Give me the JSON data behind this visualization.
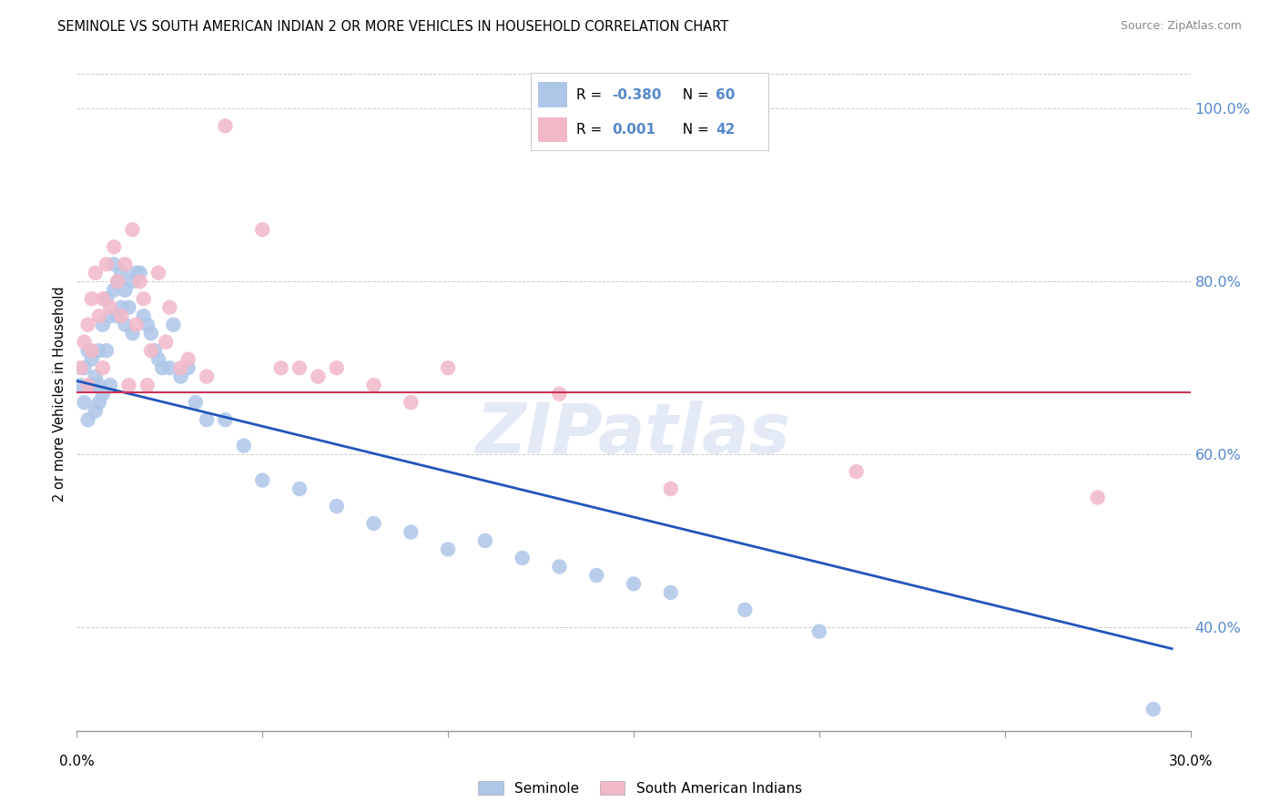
{
  "title": "SEMINOLE VS SOUTH AMERICAN INDIAN 2 OR MORE VEHICLES IN HOUSEHOLD CORRELATION CHART",
  "source": "Source: ZipAtlas.com",
  "ylabel": "2 or more Vehicles in Household",
  "xlim": [
    0.0,
    0.3
  ],
  "ylim": [
    0.28,
    1.06
  ],
  "blue_color": "#aec6e8",
  "pink_color": "#f2b8c8",
  "line_blue_color": "#2255bb",
  "line_pink_color": "#cc3355",
  "text_blue": "#5588cc",
  "grid_color": "#cccccc",
  "yticks": [
    0.4,
    0.6,
    0.8,
    1.0
  ],
  "ytick_labels": [
    "40.0%",
    "60.0%",
    "80.0%",
    "100.0%"
  ],
  "xtick_left_label": "0.0%",
  "xtick_right_label": "30.0%",
  "blue_line_x0": 0.0,
  "blue_line_y0": 0.685,
  "blue_line_x1": 0.295,
  "blue_line_y1": 0.375,
  "pink_line_y": 0.672,
  "seminole_x": [
    0.001,
    0.002,
    0.002,
    0.003,
    0.003,
    0.004,
    0.004,
    0.005,
    0.005,
    0.006,
    0.006,
    0.006,
    0.007,
    0.007,
    0.008,
    0.008,
    0.009,
    0.009,
    0.01,
    0.01,
    0.011,
    0.011,
    0.012,
    0.012,
    0.013,
    0.013,
    0.014,
    0.015,
    0.015,
    0.016,
    0.017,
    0.018,
    0.019,
    0.02,
    0.021,
    0.022,
    0.023,
    0.025,
    0.026,
    0.028,
    0.03,
    0.032,
    0.035,
    0.04,
    0.045,
    0.05,
    0.06,
    0.07,
    0.08,
    0.09,
    0.1,
    0.11,
    0.12,
    0.13,
    0.14,
    0.15,
    0.16,
    0.18,
    0.2,
    0.29
  ],
  "seminole_y": [
    0.68,
    0.66,
    0.7,
    0.64,
    0.72,
    0.68,
    0.71,
    0.65,
    0.69,
    0.72,
    0.68,
    0.66,
    0.75,
    0.67,
    0.78,
    0.72,
    0.76,
    0.68,
    0.82,
    0.79,
    0.8,
    0.76,
    0.81,
    0.77,
    0.79,
    0.75,
    0.77,
    0.8,
    0.74,
    0.81,
    0.81,
    0.76,
    0.75,
    0.74,
    0.72,
    0.71,
    0.7,
    0.7,
    0.75,
    0.69,
    0.7,
    0.66,
    0.64,
    0.64,
    0.61,
    0.57,
    0.56,
    0.54,
    0.52,
    0.51,
    0.49,
    0.5,
    0.48,
    0.47,
    0.46,
    0.45,
    0.44,
    0.42,
    0.395,
    0.305
  ],
  "sa_x": [
    0.001,
    0.002,
    0.003,
    0.003,
    0.004,
    0.004,
    0.005,
    0.006,
    0.007,
    0.007,
    0.008,
    0.009,
    0.01,
    0.011,
    0.012,
    0.013,
    0.014,
    0.015,
    0.016,
    0.017,
    0.018,
    0.019,
    0.02,
    0.022,
    0.024,
    0.025,
    0.028,
    0.03,
    0.035,
    0.04,
    0.05,
    0.055,
    0.06,
    0.065,
    0.07,
    0.08,
    0.09,
    0.1,
    0.13,
    0.16,
    0.21,
    0.275
  ],
  "sa_y": [
    0.7,
    0.73,
    0.75,
    0.68,
    0.78,
    0.72,
    0.81,
    0.76,
    0.78,
    0.7,
    0.82,
    0.77,
    0.84,
    0.8,
    0.76,
    0.82,
    0.68,
    0.86,
    0.75,
    0.8,
    0.78,
    0.68,
    0.72,
    0.81,
    0.73,
    0.77,
    0.7,
    0.71,
    0.69,
    0.98,
    0.86,
    0.7,
    0.7,
    0.69,
    0.7,
    0.68,
    0.66,
    0.7,
    0.67,
    0.56,
    0.58,
    0.55
  ],
  "watermark_text": "ZIPatlas",
  "legend_labels": [
    "Seminole",
    "South American Indians"
  ]
}
